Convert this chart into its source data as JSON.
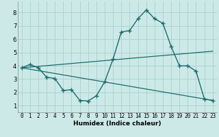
{
  "xlabel": "Humidex (Indice chaleur)",
  "bg_color": "#cce9e8",
  "grid_color": "#aad4d3",
  "line_color": "#1a6b6b",
  "xlim": [
    -0.5,
    23.5
  ],
  "ylim": [
    0.5,
    8.85
  ],
  "xticks": [
    0,
    1,
    2,
    3,
    4,
    5,
    6,
    7,
    8,
    9,
    10,
    11,
    12,
    13,
    14,
    15,
    16,
    17,
    18,
    19,
    20,
    21,
    22,
    23
  ],
  "yticks": [
    1,
    2,
    3,
    4,
    5,
    6,
    7,
    8
  ],
  "curve1_x": [
    0,
    1,
    2,
    3,
    4,
    5,
    6,
    7,
    8,
    9,
    10,
    11,
    12,
    13,
    14,
    15,
    16,
    17,
    18,
    19,
    20,
    21,
    22,
    23
  ],
  "curve1_y": [
    3.85,
    4.1,
    3.85,
    3.15,
    3.05,
    2.15,
    2.2,
    1.4,
    1.35,
    1.75,
    2.8,
    4.5,
    6.55,
    6.65,
    7.55,
    8.2,
    7.55,
    7.2,
    5.45,
    4.0,
    4.0,
    3.6,
    1.5,
    1.4
  ],
  "line2_x": [
    0,
    23
  ],
  "line2_y": [
    3.85,
    5.1
  ],
  "line3_x": [
    0,
    23
  ],
  "line3_y": [
    3.85,
    1.4
  ],
  "tick_fontsize": 5.5,
  "xlabel_fontsize": 6.5
}
